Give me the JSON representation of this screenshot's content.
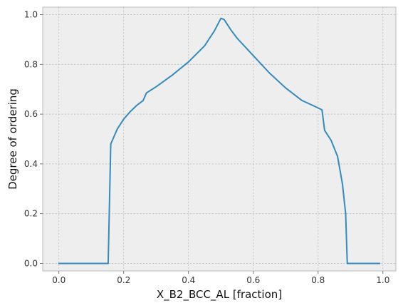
{
  "chart_data": {
    "type": "line",
    "title": "",
    "xlabel": "X_B2_BCC_AL [fraction]",
    "ylabel": "Degree of ordering",
    "xlim": [
      -0.05,
      1.04
    ],
    "ylim": [
      -0.03,
      1.03
    ],
    "xticks": [
      "0.0",
      "0.2",
      "0.4",
      "0.6",
      "0.8",
      "1.0"
    ],
    "yticks": [
      "0.0",
      "0.2",
      "0.4",
      "0.6",
      "0.8",
      "1.0"
    ],
    "grid": true,
    "legend": "none",
    "colors": {
      "background": "#EEEEEE",
      "line": "#348ABD",
      "frame": "#BCBCBC"
    },
    "series": [
      {
        "x": [
          0.0,
          0.152,
          0.16,
          0.18,
          0.2,
          0.22,
          0.24,
          0.26,
          0.27,
          0.3,
          0.35,
          0.4,
          0.45,
          0.48,
          0.5,
          0.51,
          0.53,
          0.55,
          0.6,
          0.65,
          0.7,
          0.75,
          0.8,
          0.812,
          0.82,
          0.84,
          0.86,
          0.875,
          0.885,
          0.89,
          0.99
        ],
        "values": [
          0.0,
          0.0,
          0.48,
          0.54,
          0.58,
          0.61,
          0.635,
          0.655,
          0.685,
          0.71,
          0.757,
          0.81,
          0.875,
          0.935,
          0.985,
          0.98,
          0.94,
          0.905,
          0.835,
          0.765,
          0.705,
          0.655,
          0.625,
          0.617,
          0.535,
          0.495,
          0.43,
          0.32,
          0.2,
          0.0,
          0.0
        ]
      }
    ]
  }
}
